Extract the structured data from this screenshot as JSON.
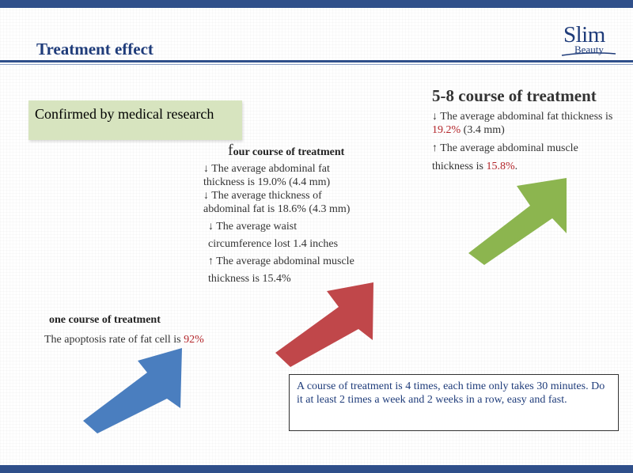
{
  "header": {
    "title": "Treatment effect",
    "logo_main": "Slim",
    "logo_sub": "Beauty"
  },
  "confirm": {
    "text": "Confirmed by medical research"
  },
  "one_course": {
    "heading": "one course of treatment",
    "line1_prefix": "The apoptosis rate of fat cell is ",
    "line1_value": "92%"
  },
  "four_course": {
    "heading_initial": "f",
    "heading_rest": "our course of treatment",
    "lines": [
      "↓ The average abdominal fat thickness is 19.0% (4.4 mm)",
      "↓ The average thickness of abdominal fat is 18.6% (4.3 mm)",
      "↓ The average waist circumference lost 1.4 inches",
      "↑ The average abdominal muscle thickness is 15.4%"
    ]
  },
  "eight_course": {
    "heading": "5-8 course of treatment",
    "line1_prefix": "↓ The average abdominal fat thickness is ",
    "line1_value": "19.2%",
    "line1_suffix": " (3.4 mm)",
    "line2a": "↑ The average abdominal muscle",
    "line2b_prefix": "thickness is ",
    "line2b_value": "15.8%",
    "line2b_suffix": "."
  },
  "note": {
    "text": "A course of treatment is 4 times, each time only takes 30 minutes. Do it at least 2 times a week and 2 weeks in a row, easy and fast."
  },
  "colors": {
    "brand_blue": "#1f3c7a",
    "arrow_blue": "#4a7ebf",
    "arrow_red": "#c0474a",
    "arrow_green": "#8cb54f",
    "highlight_red": "#b3252a",
    "confirm_bg": "#d7e4bf"
  }
}
